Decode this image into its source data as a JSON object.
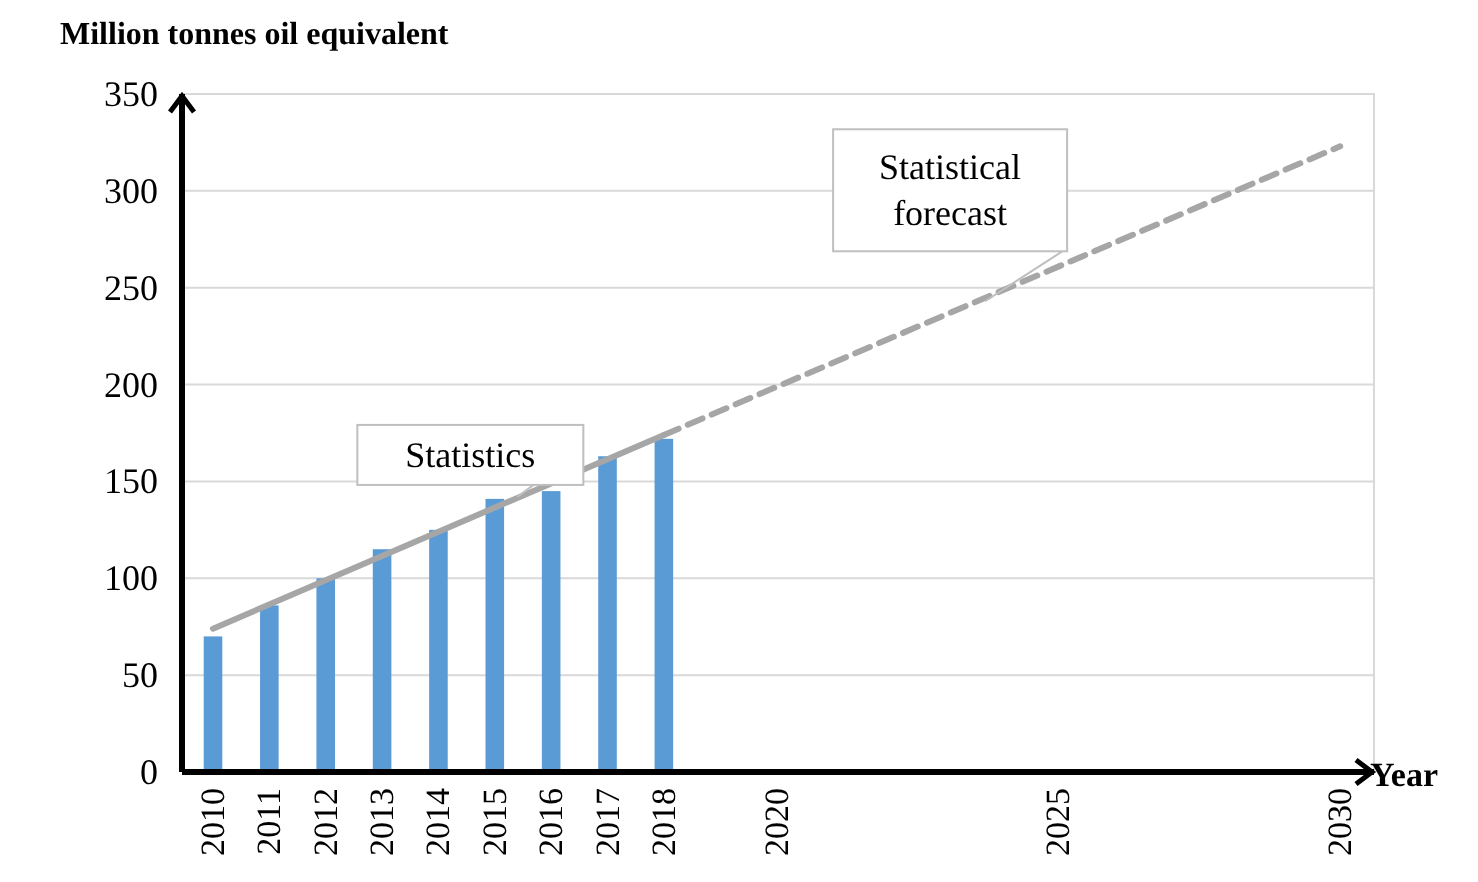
{
  "chart_data": {
    "type": "bar",
    "ylabel": "Million tonnes oil equivalent",
    "xlabel": "Year",
    "xlim": [
      2009.45,
      2030.6
    ],
    "xticks": [
      2010,
      2011,
      2012,
      2013,
      2014,
      2015,
      2016,
      2017,
      2018,
      2020,
      2025,
      2030
    ],
    "ylim": [
      0,
      350
    ],
    "yticks": [
      0,
      50,
      100,
      150,
      200,
      250,
      300,
      350
    ],
    "grid": "y",
    "series": [
      {
        "color": "#5b9bd5",
        "x": [
          2010,
          2011,
          2012,
          2013,
          2014,
          2015,
          2016,
          2017,
          2018
        ],
        "values": [
          70,
          86,
          100,
          115,
          125,
          141,
          145,
          163,
          172
        ]
      },
      {
        "type": "line",
        "color": "#a6a6a6",
        "line_style": "solid",
        "x": [
          2010,
          2018
        ],
        "values": [
          74,
          174
        ]
      },
      {
        "type": "line",
        "color": "#a6a6a6",
        "line_style": "dashed",
        "x": [
          2018,
          2030
        ],
        "values": [
          174,
          323
        ]
      }
    ],
    "annotations": [
      {
        "text": "Statistics",
        "x": 2015.4,
        "y": 142
      },
      {
        "text": "Statistical forecast",
        "x": 2023.7,
        "y": 243
      }
    ]
  }
}
